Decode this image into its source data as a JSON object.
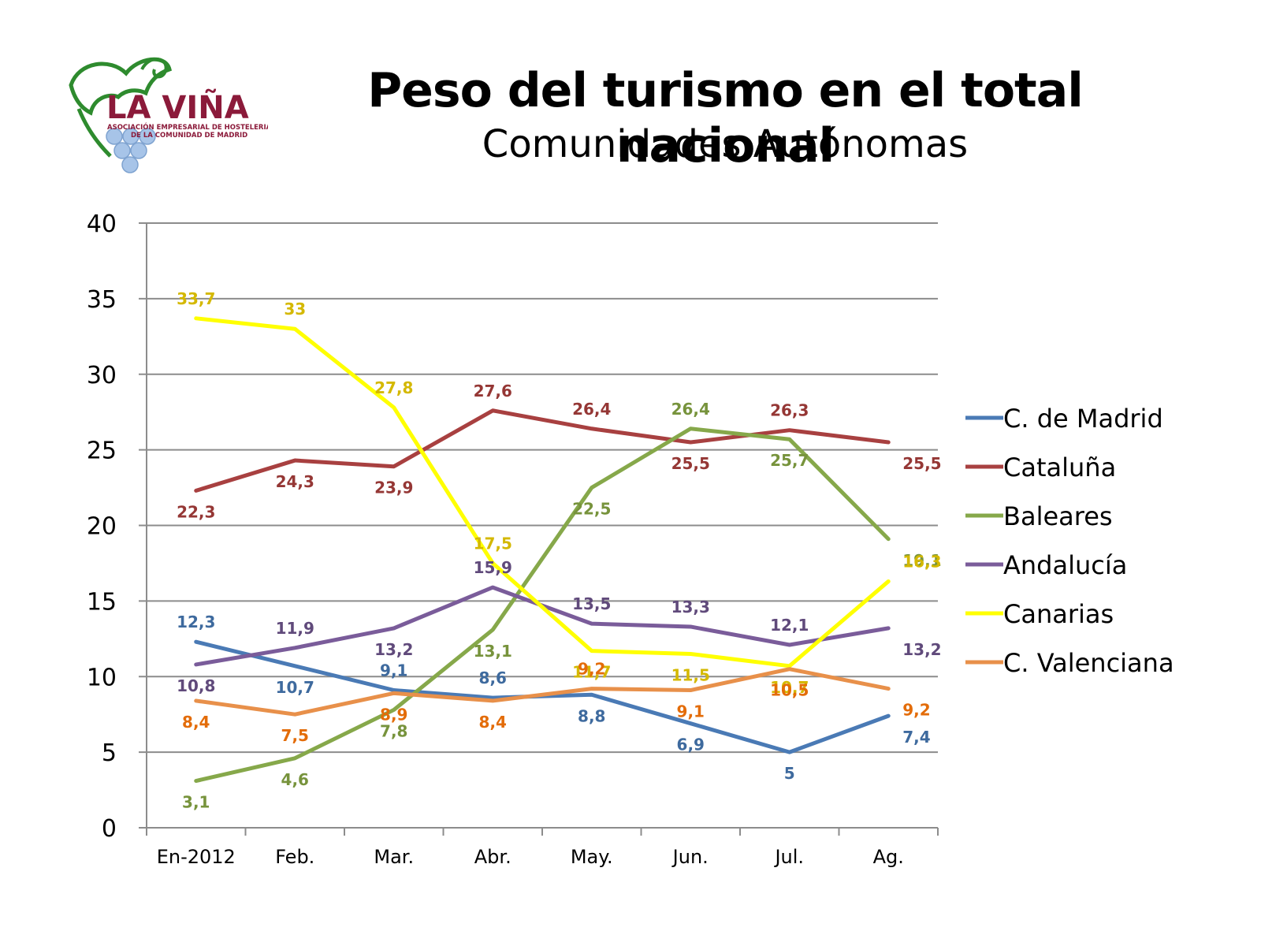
{
  "header": {
    "title": "Peso del turismo en el total nacional",
    "subtitle": "Comunidades Autónomas"
  },
  "logo": {
    "name": "LA VIÑA",
    "tagline_1": "ASOCIACIÓN EMPRESARIAL DE HOSTELERIA",
    "tagline_2": "DE LA COMUNIDAD DE MADRID",
    "colors": {
      "text": "#8b1a3a",
      "leaf": "#2e8b2e",
      "grape": "#a7c4e8"
    }
  },
  "chart_data": {
    "type": "line",
    "categories": [
      "En-2012",
      "Feb.",
      "Mar.",
      "Abr.",
      "May.",
      "Jun.",
      "Jul.",
      "Ag."
    ],
    "ylim": [
      0,
      40
    ],
    "yticks": [
      0,
      5,
      10,
      15,
      20,
      25,
      30,
      35,
      40
    ],
    "grid": true,
    "legend_position": "right",
    "series": [
      {
        "name": "C. de Madrid",
        "color": "#4a7ab5",
        "label_color": "#3e6a9e",
        "values": [
          12.3,
          10.7,
          9.1,
          8.6,
          8.8,
          6.9,
          5,
          7.4
        ],
        "labels": [
          "12,3",
          "10,7",
          "9,1",
          "8,6",
          "8,8",
          "6,9",
          "5",
          "7,4"
        ]
      },
      {
        "name": "Cataluña",
        "color": "#a84040",
        "label_color": "#953735",
        "values": [
          22.3,
          24.3,
          23.9,
          27.6,
          26.4,
          25.5,
          26.3,
          25.5
        ],
        "labels": [
          "22,3",
          "24,3",
          "23,9",
          "27,6",
          "26,4",
          "25,5",
          "26,3",
          "25,5"
        ]
      },
      {
        "name": "Baleares",
        "color": "#86a84a",
        "label_color": "#77933c",
        "values": [
          3.1,
          4.6,
          7.8,
          13.1,
          22.5,
          26.4,
          25.7,
          19.1
        ],
        "labels": [
          "3,1",
          "4,6",
          "7,8",
          "13,1",
          "22,5",
          "26,4",
          "25,7",
          "19,1"
        ]
      },
      {
        "name": "Andalucía",
        "color": "#7a5c9a",
        "label_color": "#604a7b",
        "values": [
          10.8,
          11.9,
          13.2,
          15.9,
          13.5,
          13.3,
          12.1,
          13.2
        ],
        "labels": [
          "10,8",
          "11,9",
          "13,2",
          "15,9",
          "13,5",
          "13,3",
          "12,1",
          "13,2"
        ]
      },
      {
        "name": "Canarias",
        "color": "#ffff00",
        "label_color": "#d4b800",
        "values": [
          33.7,
          33,
          27.8,
          17.5,
          11.7,
          11.5,
          10.7,
          16.3
        ],
        "labels": [
          "33,7",
          "33",
          "27,8",
          "17,5",
          "11,7",
          "11,5",
          "10,7",
          "16,3"
        ]
      },
      {
        "name": "C. Valenciana",
        "color": "#e8904a",
        "label_color": "#e36c09",
        "values": [
          8.4,
          7.5,
          8.9,
          8.4,
          9.2,
          9.1,
          10.5,
          9.2
        ],
        "labels": [
          "8,4",
          "7,5",
          "8,9",
          "8,4",
          "9,2",
          "9,1",
          "10,5",
          "9,2"
        ]
      }
    ]
  }
}
